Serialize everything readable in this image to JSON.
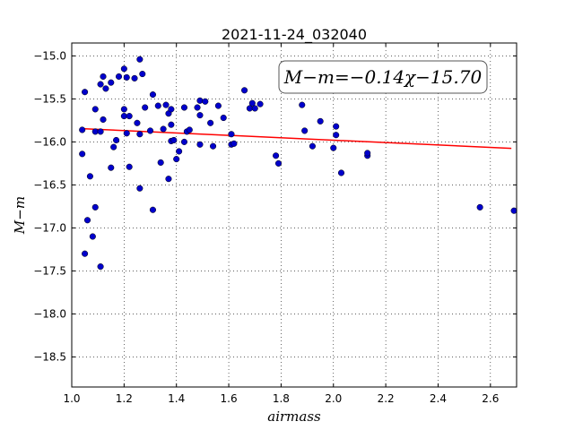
{
  "chart_data": {
    "type": "scatter",
    "title": "2021-11-24_032040",
    "xlabel": "airmass",
    "ylabel": "M−m",
    "xlim": [
      1.0,
      2.7
    ],
    "ylim": [
      -18.85,
      -14.85
    ],
    "y_inverted": true,
    "grid": true,
    "x_ticks": [
      1.0,
      1.2,
      1.4,
      1.6,
      1.8,
      2.0,
      2.2,
      2.4,
      2.6
    ],
    "x_tick_labels": [
      "1.0",
      "1.2",
      "1.4",
      "1.6",
      "1.8",
      "2.0",
      "2.2",
      "2.4",
      "2.6"
    ],
    "y_ticks": [
      -15.0,
      -15.5,
      -16.0,
      -16.5,
      -17.0,
      -17.5,
      -18.0,
      -18.5
    ],
    "y_tick_labels": [
      "−15.0",
      "−15.5",
      "−16.0",
      "−16.5",
      "−17.0",
      "−17.5",
      "−18.0",
      "−18.5"
    ],
    "annotation": "M−m=−0.14χ−15.70",
    "colors": {
      "points": "#0000cc",
      "fit": "#ff0000"
    },
    "fit": {
      "slope": -0.14,
      "intercept": -15.7,
      "x_range": [
        1.04,
        2.68
      ]
    },
    "points": [
      [
        1.04,
        -15.86
      ],
      [
        1.04,
        -16.14
      ],
      [
        1.05,
        -17.3
      ],
      [
        1.05,
        -15.42
      ],
      [
        1.06,
        -16.91
      ],
      [
        1.07,
        -16.4
      ],
      [
        1.08,
        -17.1
      ],
      [
        1.09,
        -16.76
      ],
      [
        1.09,
        -15.62
      ],
      [
        1.09,
        -15.88
      ],
      [
        1.11,
        -17.45
      ],
      [
        1.11,
        -15.33
      ],
      [
        1.11,
        -15.88
      ],
      [
        1.12,
        -15.24
      ],
      [
        1.12,
        -15.74
      ],
      [
        1.13,
        -15.38
      ],
      [
        1.15,
        -16.3
      ],
      [
        1.15,
        -15.31
      ],
      [
        1.16,
        -16.06
      ],
      [
        1.17,
        -15.98
      ],
      [
        1.18,
        -15.24
      ],
      [
        1.2,
        -15.15
      ],
      [
        1.2,
        -15.62
      ],
      [
        1.2,
        -15.7
      ],
      [
        1.21,
        -15.25
      ],
      [
        1.21,
        -15.9
      ],
      [
        1.22,
        -15.7
      ],
      [
        1.22,
        -16.29
      ],
      [
        1.24,
        -15.26
      ],
      [
        1.25,
        -15.78
      ],
      [
        1.26,
        -15.04
      ],
      [
        1.26,
        -15.91
      ],
      [
        1.26,
        -16.54
      ],
      [
        1.27,
        -15.21
      ],
      [
        1.28,
        -15.6
      ],
      [
        1.3,
        -15.87
      ],
      [
        1.31,
        -16.79
      ],
      [
        1.31,
        -15.45
      ],
      [
        1.33,
        -15.58
      ],
      [
        1.34,
        -16.24
      ],
      [
        1.35,
        -15.85
      ],
      [
        1.36,
        -15.57
      ],
      [
        1.37,
        -16.43
      ],
      [
        1.37,
        -15.67
      ],
      [
        1.38,
        -15.62
      ],
      [
        1.38,
        -15.8
      ],
      [
        1.38,
        -15.99
      ],
      [
        1.39,
        -15.98
      ],
      [
        1.4,
        -16.2
      ],
      [
        1.41,
        -16.11
      ],
      [
        1.43,
        -15.6
      ],
      [
        1.43,
        -16.0
      ],
      [
        1.44,
        -15.88
      ],
      [
        1.45,
        -15.86
      ],
      [
        1.48,
        -15.6
      ],
      [
        1.49,
        -16.03
      ],
      [
        1.49,
        -15.69
      ],
      [
        1.49,
        -15.52
      ],
      [
        1.51,
        -15.53
      ],
      [
        1.53,
        -15.78
      ],
      [
        1.54,
        -16.05
      ],
      [
        1.56,
        -15.58
      ],
      [
        1.58,
        -15.72
      ],
      [
        1.61,
        -15.91
      ],
      [
        1.61,
        -16.03
      ],
      [
        1.62,
        -16.02
      ],
      [
        1.66,
        -15.4
      ],
      [
        1.68,
        -15.61
      ],
      [
        1.69,
        -15.55
      ],
      [
        1.7,
        -15.61
      ],
      [
        1.72,
        -15.56
      ],
      [
        1.78,
        -16.16
      ],
      [
        1.79,
        -16.25
      ],
      [
        1.88,
        -15.57
      ],
      [
        1.89,
        -15.87
      ],
      [
        1.92,
        -16.05
      ],
      [
        1.95,
        -15.76
      ],
      [
        2.0,
        -16.07
      ],
      [
        2.01,
        -15.82
      ],
      [
        2.01,
        -15.92
      ],
      [
        2.03,
        -16.36
      ],
      [
        2.13,
        -16.16
      ],
      [
        2.13,
        -16.13
      ],
      [
        2.56,
        -16.76
      ],
      [
        2.69,
        -16.8
      ]
    ]
  }
}
